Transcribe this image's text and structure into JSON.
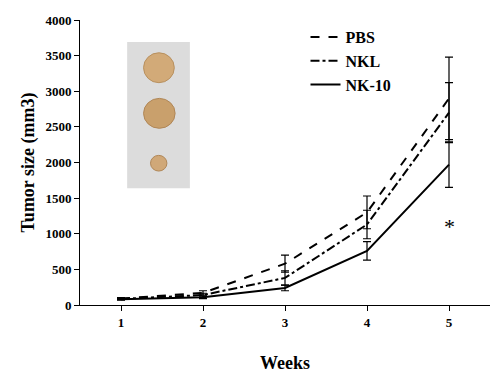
{
  "chart_data": {
    "type": "line",
    "x_label": "Weeks",
    "y_label": "Tumor size (mm3)",
    "x": [
      1,
      2,
      3,
      4,
      5
    ],
    "xlim": [
      0.5,
      5.5
    ],
    "xticks": [
      1,
      2,
      3,
      4,
      5
    ],
    "ylim": [
      0,
      4000
    ],
    "yticks": [
      0,
      500,
      1000,
      1500,
      2000,
      2500,
      3000,
      3500,
      4000
    ],
    "grid": false,
    "legend": "upper right",
    "series": [
      {
        "name": "PBS",
        "color": "#000000",
        "line_style": "dash",
        "values": [
          90,
          170,
          580,
          1300,
          2900
        ],
        "error": [
          15,
          30,
          120,
          230,
          580
        ]
      },
      {
        "name": "NKL",
        "color": "#000000",
        "line_style": "dashdot",
        "values": [
          85,
          140,
          380,
          1130,
          2700
        ],
        "error": [
          15,
          25,
          100,
          200,
          420
        ]
      },
      {
        "name": "NK-10",
        "color": "#000000",
        "line_style": "solid",
        "values": [
          80,
          110,
          240,
          760,
          1970
        ],
        "error": [
          10,
          20,
          40,
          130,
          320
        ]
      }
    ],
    "annotations": [
      {
        "text": "*",
        "x": 5,
        "y": 1100
      }
    ]
  }
}
